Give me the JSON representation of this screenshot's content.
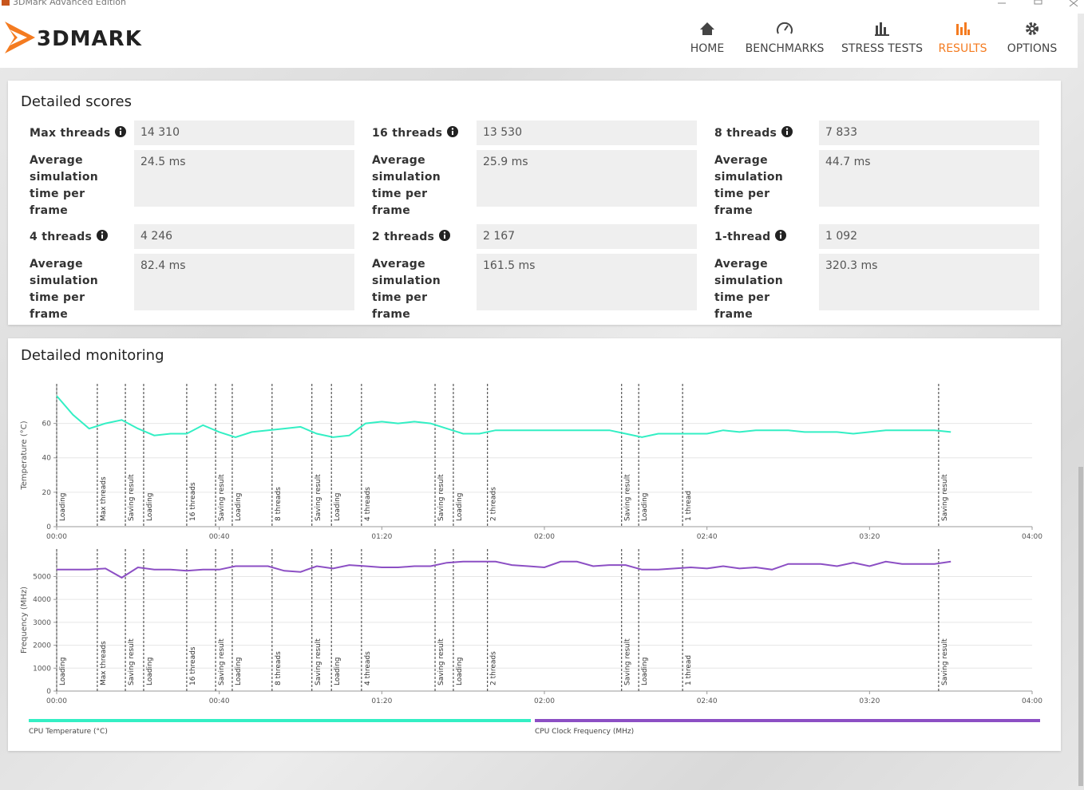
{
  "window": {
    "title": "3DMark Advanced Edition"
  },
  "header": {
    "logo": "3DMARK",
    "nav": [
      "HOME",
      "BENCHMARKS",
      "STRESS TESTS",
      "RESULTS",
      "OPTIONS"
    ],
    "active": 3
  },
  "detailed_scores": {
    "title": "Detailed scores",
    "items": [
      {
        "label": "Max threads",
        "score": "14 310",
        "time_label": "Average simulation time per frame",
        "time": "24.5 ms"
      },
      {
        "label": "16 threads",
        "score": "13 530",
        "time_label": "Average simulation time per frame",
        "time": "25.9 ms"
      },
      {
        "label": "8 threads",
        "score": "7 833",
        "time_label": "Average simulation time per frame",
        "time": "44.7 ms"
      },
      {
        "label": "4 threads",
        "score": "4 246",
        "time_label": "Average simulation time per frame",
        "time": "82.4 ms"
      },
      {
        "label": "2 threads",
        "score": "2 167",
        "time_label": "Average simulation time per frame",
        "time": "161.5 ms"
      },
      {
        "label": "1-thread",
        "score": "1 092",
        "time_label": "Average simulation time per frame",
        "time": "320.3 ms"
      }
    ]
  },
  "detailed_monitoring": {
    "title": "Detailed monitoring"
  },
  "chart_data": [
    {
      "type": "line",
      "y_label": "Temperature (°C)",
      "x": [
        0,
        4,
        8,
        12,
        16,
        20,
        24,
        28,
        32,
        36,
        40,
        44,
        48,
        52,
        56,
        60,
        64,
        68,
        72,
        76,
        80,
        84,
        88,
        92,
        96,
        100,
        104,
        108,
        112,
        116,
        120,
        124,
        128,
        132,
        136,
        140,
        144,
        148,
        152,
        156,
        160,
        164,
        168,
        172,
        176,
        180,
        184,
        188,
        192,
        196,
        200,
        204,
        208,
        212,
        216,
        220
      ],
      "series": [
        {
          "name": "CPU Temperature (°C)",
          "color": "#33efc4",
          "values": [
            76,
            65,
            57,
            60,
            62,
            57,
            53,
            54,
            54,
            59,
            55,
            52,
            55,
            56,
            57,
            58,
            54,
            52,
            53,
            60,
            61,
            60,
            61,
            60,
            57,
            54,
            54,
            56,
            56,
            56,
            56,
            56,
            56,
            56,
            56,
            54,
            52,
            54,
            54,
            54,
            54,
            56,
            55,
            56,
            56,
            56,
            55,
            55,
            55,
            54,
            55,
            56,
            56,
            56,
            56,
            55
          ]
        }
      ],
      "xlim": [
        0,
        240
      ],
      "xticks": [
        {
          "value": 0,
          "label": "00:00"
        },
        {
          "value": 40,
          "label": "00:40"
        },
        {
          "value": 80,
          "label": "01:20"
        },
        {
          "value": 120,
          "label": "02:00"
        },
        {
          "value": 160,
          "label": "02:40"
        },
        {
          "value": 200,
          "label": "03:20"
        },
        {
          "value": 240,
          "label": "04:00"
        }
      ],
      "ylim": [
        0,
        83
      ],
      "yticks": [
        0,
        20,
        40,
        60
      ],
      "grid": true,
      "annotations": [
        {
          "text": "Loading",
          "x": 0
        },
        {
          "text": "Max threads",
          "x": 10
        },
        {
          "text": "Saving result",
          "x": 16.9
        },
        {
          "text": "Loading",
          "x": 21.4
        },
        {
          "text": "16 threads",
          "x": 32
        },
        {
          "text": "Saving result",
          "x": 39.1
        },
        {
          "text": "Loading",
          "x": 43.2
        },
        {
          "text": "8 threads",
          "x": 53
        },
        {
          "text": "Saving result",
          "x": 62.8
        },
        {
          "text": "Loading",
          "x": 67.6
        },
        {
          "text": "4 threads",
          "x": 75
        },
        {
          "text": "Saving result",
          "x": 93.1
        },
        {
          "text": "Loading",
          "x": 97.6
        },
        {
          "text": "2 threads",
          "x": 106
        },
        {
          "text": "Saving result",
          "x": 139
        },
        {
          "text": "Loading",
          "x": 143.2
        },
        {
          "text": "1 thread",
          "x": 154
        },
        {
          "text": "Saving result",
          "x": 217
        }
      ]
    },
    {
      "type": "line",
      "y_label": "Frequency (MHz)",
      "x": [
        0,
        4,
        8,
        12,
        16,
        20,
        24,
        28,
        32,
        36,
        40,
        44,
        48,
        52,
        56,
        60,
        64,
        68,
        72,
        76,
        80,
        84,
        88,
        92,
        96,
        100,
        104,
        108,
        112,
        116,
        120,
        124,
        128,
        132,
        136,
        140,
        144,
        148,
        152,
        156,
        160,
        164,
        168,
        172,
        176,
        180,
        184,
        188,
        192,
        196,
        200,
        204,
        208,
        212,
        216,
        220
      ],
      "series": [
        {
          "name": "CPU Clock Frequency (MHz)",
          "color": "#8c4fc4",
          "values": [
            5300,
            5300,
            5300,
            5350,
            4950,
            5400,
            5300,
            5300,
            5250,
            5300,
            5300,
            5450,
            5450,
            5450,
            5250,
            5200,
            5450,
            5350,
            5500,
            5450,
            5400,
            5400,
            5450,
            5450,
            5600,
            5650,
            5650,
            5650,
            5500,
            5450,
            5400,
            5650,
            5650,
            5450,
            5500,
            5500,
            5300,
            5300,
            5350,
            5400,
            5350,
            5450,
            5350,
            5400,
            5300,
            5550,
            5550,
            5550,
            5450,
            5600,
            5450,
            5650,
            5550,
            5550,
            5550,
            5650
          ]
        }
      ],
      "xlim": [
        0,
        240
      ],
      "xticks": [
        {
          "value": 0,
          "label": "00:00"
        },
        {
          "value": 40,
          "label": "00:40"
        },
        {
          "value": 80,
          "label": "01:20"
        },
        {
          "value": 120,
          "label": "02:00"
        },
        {
          "value": 160,
          "label": "02:40"
        },
        {
          "value": 200,
          "label": "03:20"
        },
        {
          "value": 240,
          "label": "04:00"
        }
      ],
      "ylim": [
        0,
        6200
      ],
      "yticks": [
        0,
        1000,
        2000,
        3000,
        4000,
        5000
      ],
      "grid": true,
      "annotations": [
        {
          "text": "Loading",
          "x": 0
        },
        {
          "text": "Max threads",
          "x": 10
        },
        {
          "text": "Saving result",
          "x": 16.9
        },
        {
          "text": "Loading",
          "x": 21.4
        },
        {
          "text": "16 threads",
          "x": 32
        },
        {
          "text": "Saving result",
          "x": 39.1
        },
        {
          "text": "Loading",
          "x": 43.2
        },
        {
          "text": "8 threads",
          "x": 53
        },
        {
          "text": "Saving result",
          "x": 62.8
        },
        {
          "text": "Loading",
          "x": 67.6
        },
        {
          "text": "4 threads",
          "x": 75
        },
        {
          "text": "Saving result",
          "x": 93.1
        },
        {
          "text": "Loading",
          "x": 97.6
        },
        {
          "text": "2 threads",
          "x": 106
        },
        {
          "text": "Saving result",
          "x": 139
        },
        {
          "text": "Loading",
          "x": 143.2
        },
        {
          "text": "1 thread",
          "x": 154
        },
        {
          "text": "Saving result",
          "x": 217
        }
      ]
    }
  ]
}
